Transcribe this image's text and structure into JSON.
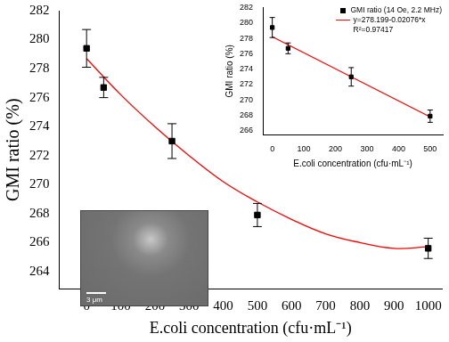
{
  "chart_data": [
    {
      "type": "scatter",
      "xlabel": "E.coli concentration (cfu·mL⁻¹)",
      "ylabel": "GMI ratio (%)",
      "xlim": [
        -80,
        1040
      ],
      "xticks": [
        0,
        100,
        200,
        300,
        400,
        500,
        600,
        700,
        800,
        900,
        1000
      ],
      "ylim": [
        262.8,
        282
      ],
      "yticks": [
        264,
        266,
        268,
        270,
        272,
        274,
        276,
        278,
        280,
        282
      ],
      "grid": false,
      "series": [
        {
          "x": [
            0,
            50,
            250,
            500,
            1000
          ],
          "values": [
            279.4,
            276.7,
            273.0,
            267.9,
            265.6
          ],
          "errors": [
            1.3,
            0.7,
            1.2,
            0.8,
            0.7
          ],
          "color": "#000000",
          "marker": "square"
        },
        {
          "type": "line",
          "x": [
            0,
            100,
            200,
            300,
            400,
            500,
            600,
            700,
            800,
            900,
            1000
          ],
          "values": [
            278.7,
            276.2,
            274.0,
            272.0,
            270.2,
            268.8,
            267.6,
            266.6,
            266.0,
            265.6,
            265.7
          ],
          "color": "#ff0000",
          "line_style": "solid"
        }
      ],
      "image_inset": {
        "scale_label": "3 μm"
      }
    },
    {
      "type": "scatter",
      "xlabel": "E.coli concentration (cfu·mL⁻¹)",
      "ylabel": "GMI ratio (%)",
      "xlim": [
        -30,
        540
      ],
      "xticks": [
        0,
        100,
        200,
        300,
        400,
        500
      ],
      "ylim": [
        265.5,
        282
      ],
      "yticks": [
        266,
        268,
        270,
        272,
        274,
        276,
        278,
        280,
        282
      ],
      "grid": false,
      "legend": "upper right",
      "series": [
        {
          "name": "GMI ratio (14 Oe, 2.2 MHz)",
          "x": [
            0,
            50,
            250,
            500
          ],
          "values": [
            279.4,
            276.7,
            273.0,
            267.9
          ],
          "errors": [
            1.3,
            0.7,
            1.2,
            0.8
          ],
          "color": "#000000",
          "marker": "square"
        },
        {
          "name": "y=278.199-0.02076*x",
          "type": "line",
          "x": [
            0,
            500
          ],
          "values": [
            278.2,
            267.8
          ],
          "color": "#ff0000",
          "line_style": "solid"
        }
      ],
      "annotations": [
        "R²=0.97417"
      ]
    }
  ]
}
